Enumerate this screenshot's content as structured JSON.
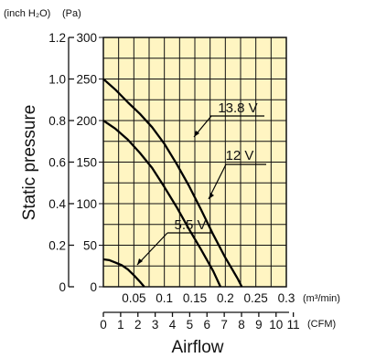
{
  "chart_data": {
    "type": "line",
    "title": "",
    "ylabel": "Static pressure",
    "xlabel": "Airflow",
    "y_units": {
      "left_outer": "(inch H₂O)",
      "left_inner": "(Pa)"
    },
    "x_units": {
      "primary": "(m³/min)",
      "secondary": "(CFM)"
    },
    "ylim": [
      0,
      300
    ],
    "xlim": [
      0,
      0.3
    ],
    "grid": true,
    "y_ticks_pa": [
      "0",
      "50",
      "100",
      "150",
      "200",
      "250",
      "300"
    ],
    "y_ticks_inch": [
      "0",
      "0.2",
      "0.4",
      "0.6",
      "0.8",
      "1.0",
      "1.2"
    ],
    "x_ticks_m3min": [
      "0.05",
      "0.1",
      "0.15",
      "0.2",
      "0.25",
      "0.3"
    ],
    "x_ticks_cfm": [
      "0",
      "1",
      "2",
      "3",
      "4",
      "5",
      "6",
      "7",
      "8",
      "9",
      "10",
      "11"
    ],
    "series": [
      {
        "name": "13.8 V",
        "points": [
          [
            0,
            250
          ],
          [
            0.02,
            237
          ],
          [
            0.04,
            222
          ],
          [
            0.06,
            208
          ],
          [
            0.08,
            192
          ],
          [
            0.1,
            172
          ],
          [
            0.12,
            148
          ],
          [
            0.14,
            122
          ],
          [
            0.16,
            93
          ],
          [
            0.18,
            63
          ],
          [
            0.2,
            35
          ],
          [
            0.22,
            10
          ],
          [
            0.227,
            0
          ]
        ]
      },
      {
        "name": "12 V",
        "points": [
          [
            0,
            200
          ],
          [
            0.02,
            190
          ],
          [
            0.04,
            177
          ],
          [
            0.06,
            161
          ],
          [
            0.08,
            143
          ],
          [
            0.1,
            120
          ],
          [
            0.12,
            96
          ],
          [
            0.14,
            70
          ],
          [
            0.16,
            45
          ],
          [
            0.18,
            19
          ],
          [
            0.192,
            0
          ]
        ]
      },
      {
        "name": "5.5 V",
        "points": [
          [
            0,
            33
          ],
          [
            0.01,
            32
          ],
          [
            0.02,
            29
          ],
          [
            0.03,
            26
          ],
          [
            0.04,
            21
          ],
          [
            0.05,
            14
          ],
          [
            0.06,
            6
          ],
          [
            0.067,
            0
          ]
        ]
      }
    ]
  }
}
